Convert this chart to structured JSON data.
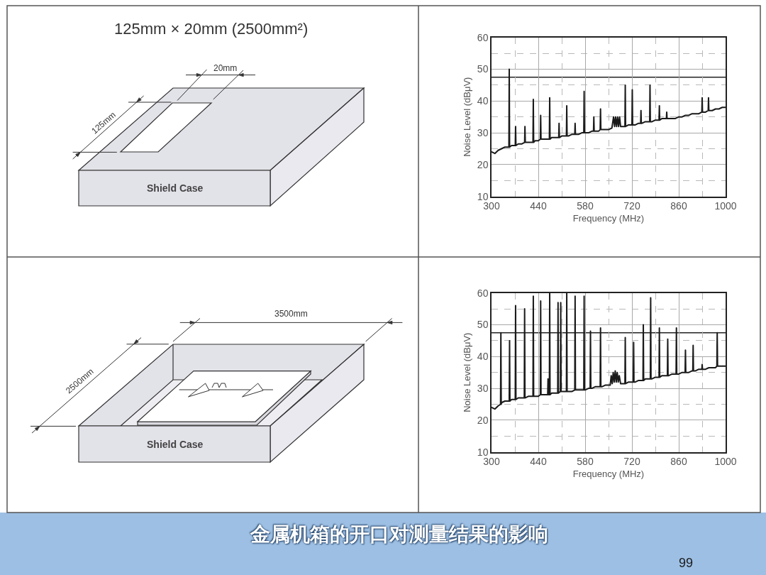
{
  "chart_data": [
    {
      "type": "other",
      "title": "125mm × 20mm (2500mm²)",
      "annotations": [
        "20mm",
        "125mm",
        "Shield Case"
      ]
    },
    {
      "type": "line",
      "xlabel": "Frequency (MHz)",
      "ylabel": "Noise Level (dBμV)",
      "xlim": [
        300,
        1000
      ],
      "ylim": [
        10,
        60
      ],
      "xticks": [
        300,
        {
          "value": 370,
          "label": null
        },
        440,
        {
          "value": 510,
          "label": null
        },
        580,
        {
          "value": 650,
          "label": null
        },
        720,
        {
          "value": 790,
          "label": null
        },
        860,
        {
          "value": 930,
          "label": null
        },
        1000
      ],
      "yticks": [
        10,
        {
          "value": 15,
          "label": null
        },
        20,
        {
          "value": 25,
          "label": null
        },
        30,
        {
          "value": 35,
          "label": null
        },
        40,
        {
          "value": 45,
          "label": null
        },
        50,
        {
          "value": 55,
          "label": null
        },
        60
      ],
      "grid": true,
      "ref_lines": [
        {
          "axis": "y",
          "value": 47.5,
          "color": "#222222"
        }
      ],
      "series": [
        {
          "color": "#1a1a1a",
          "x": [
            300,
            310,
            320,
            330,
            340,
            350,
            352,
            353,
            354,
            360,
            370,
            371,
            372,
            373,
            380,
            390,
            399,
            400,
            401,
            410,
            420,
            424,
            425,
            426,
            430,
            440,
            446,
            447,
            448,
            450,
            460,
            470,
            473,
            474,
            475,
            480,
            490,
            500,
            501,
            502,
            503,
            510,
            520,
            524,
            525,
            526,
            530,
            540,
            549,
            550,
            551,
            560,
            570,
            576,
            577,
            578,
            580,
            590,
            600,
            605,
            606,
            607,
            610,
            620,
            625,
            626,
            627,
            630,
            640,
            650,
            660,
            665,
            668,
            671,
            674,
            677,
            680,
            683,
            686,
            690,
            699,
            700,
            701,
            710,
            720,
            721,
            722,
            730,
            740,
            746,
            747,
            748,
            750,
            760,
            770,
            773,
            774,
            775,
            780,
            790,
            800,
            801,
            802,
            803,
            810,
            820,
            823,
            824,
            825,
            830,
            840,
            850,
            860,
            870,
            880,
            890,
            900,
            910,
            920,
            929,
            930,
            931,
            940,
            948,
            949,
            950,
            960,
            970,
            980,
            990,
            1000
          ],
          "values": [
            24,
            23.5,
            24.5,
            25,
            25.5,
            25.5,
            25.5,
            50,
            25.5,
            26,
            26,
            26,
            32,
            26,
            26.5,
            26.5,
            27,
            32,
            27,
            27,
            27,
            27,
            40.5,
            27,
            27.5,
            27.5,
            28,
            35.5,
            28,
            28,
            28,
            28,
            28,
            41,
            28,
            28.5,
            28.5,
            28.5,
            28.5,
            33,
            28.5,
            29,
            29,
            29,
            38.5,
            29,
            29,
            29.5,
            29.5,
            33,
            29.5,
            29.5,
            30,
            30,
            43,
            30,
            30,
            30,
            30.5,
            30.5,
            35,
            30.5,
            30.5,
            30.5,
            31,
            37.5,
            31,
            31,
            31,
            31,
            31.5,
            35,
            32,
            35,
            32,
            35,
            32,
            35,
            32,
            32,
            32,
            45,
            32,
            32.5,
            32.5,
            43.5,
            32.5,
            32.5,
            33,
            33,
            37,
            33,
            33,
            33.5,
            33.5,
            33.5,
            45,
            33.5,
            33.5,
            34,
            34,
            34,
            38.5,
            34,
            34.5,
            34.5,
            34.5,
            36.5,
            34.5,
            34.5,
            34.5,
            34.5,
            35,
            35,
            35.5,
            35.5,
            36,
            36,
            36,
            36.5,
            41,
            36.5,
            36.5,
            37,
            41,
            37,
            37,
            37.5,
            37.5,
            38,
            38
          ]
        }
      ]
    },
    {
      "type": "other",
      "annotations": [
        "3500mm",
        "2500mm",
        "Shield Case"
      ]
    },
    {
      "type": "line",
      "xlabel": "Frequency (MHz)",
      "ylabel": "Noise Level (dBμV)",
      "xlim": [
        300,
        1000
      ],
      "ylim": [
        10,
        60
      ],
      "xticks": [
        300,
        {
          "value": 370,
          "label": null
        },
        440,
        {
          "value": 510,
          "label": null
        },
        580,
        {
          "value": 650,
          "label": null
        },
        720,
        {
          "value": 790,
          "label": null
        },
        860,
        {
          "value": 930,
          "label": null
        },
        1000
      ],
      "yticks": [
        10,
        {
          "value": 15,
          "label": null
        },
        20,
        {
          "value": 25,
          "label": null
        },
        30,
        {
          "value": 35,
          "label": null
        },
        40,
        {
          "value": 45,
          "label": null
        },
        50,
        {
          "value": 55,
          "label": null
        },
        60
      ],
      "grid": true,
      "ref_lines": [
        {
          "axis": "y",
          "value": 47.5,
          "color": "#222222"
        }
      ],
      "series": [
        {
          "color": "#1a1a1a",
          "x": [
            300,
            310,
            320,
            327,
            328,
            329,
            330,
            340,
            350,
            353,
            354,
            355,
            360,
            370,
            371,
            372,
            373,
            380,
            390,
            398,
            399,
            400,
            410,
            420,
            424,
            425,
            426,
            430,
            440,
            446,
            447,
            448,
            450,
            460,
            468,
            469,
            470,
            473,
            474,
            475,
            480,
            490,
            498,
            499,
            500,
            506,
            507,
            508,
            510,
            520,
            524,
            525,
            526,
            530,
            540,
            549,
            550,
            551,
            560,
            570,
            576,
            577,
            578,
            580,
            590,
            595,
            596,
            597,
            600,
            610,
            620,
            625,
            626,
            627,
            630,
            640,
            650,
            655,
            658,
            661,
            664,
            667,
            670,
            673,
            676,
            679,
            682,
            686,
            690,
            699,
            700,
            701,
            710,
            720,
            724,
            725,
            726,
            730,
            740,
            750,
            753,
            754,
            755,
            760,
            770,
            775,
            776,
            777,
            780,
            790,
            800,
            801,
            802,
            803,
            810,
            820,
            826,
            827,
            828,
            830,
            840,
            850,
            852,
            853,
            854,
            860,
            870,
            879,
            880,
            881,
            890,
            900,
            902,
            903,
            904,
            910,
            920,
            929,
            930,
            931,
            940,
            950,
            960,
            970,
            974,
            975,
            976,
            980,
            990,
            1000
          ],
          "values": [
            24,
            23.5,
            24.5,
            25,
            47.5,
            25,
            25.5,
            26,
            26,
            26,
            45,
            26,
            26.5,
            26.5,
            26.5,
            56,
            26.5,
            27,
            27,
            27,
            55,
            27,
            27.5,
            27.5,
            27.5,
            59,
            27.5,
            27.5,
            27.5,
            28,
            57.5,
            28,
            28,
            28,
            28,
            33,
            28,
            28,
            60,
            28,
            28.5,
            28.5,
            28.5,
            57,
            28.5,
            29,
            57,
            29,
            29,
            29,
            29,
            60,
            29,
            29,
            29,
            29.5,
            59,
            29.5,
            29.5,
            29.5,
            29.5,
            59,
            29.5,
            29.5,
            30,
            30,
            48,
            30,
            30,
            30.5,
            30.5,
            30.5,
            49,
            30.5,
            30.5,
            31,
            31,
            31,
            34,
            31.5,
            35,
            32,
            35.5,
            32,
            35,
            32,
            34,
            31.5,
            31.5,
            31.5,
            46,
            31.5,
            32,
            32,
            32,
            44.5,
            32,
            32,
            32.5,
            32.5,
            32.5,
            50,
            32.5,
            33,
            33,
            33,
            58.5,
            33,
            33,
            33.5,
            33.5,
            33.5,
            49,
            33.5,
            34,
            34,
            34,
            45.5,
            34,
            34,
            34.5,
            34.5,
            34.5,
            49,
            34.5,
            34.5,
            35,
            35,
            42,
            35,
            35,
            35.5,
            35.5,
            43.5,
            35.5,
            35.5,
            36,
            36,
            37.5,
            36,
            36,
            36.5,
            36.5,
            36.5,
            37,
            47.5,
            37,
            37,
            37,
            37
          ]
        }
      ]
    },
    {
      "type": "other",
      "title": "金属机箱的开口对测量结果的影响",
      "annotations": [
        "99"
      ]
    }
  ]
}
